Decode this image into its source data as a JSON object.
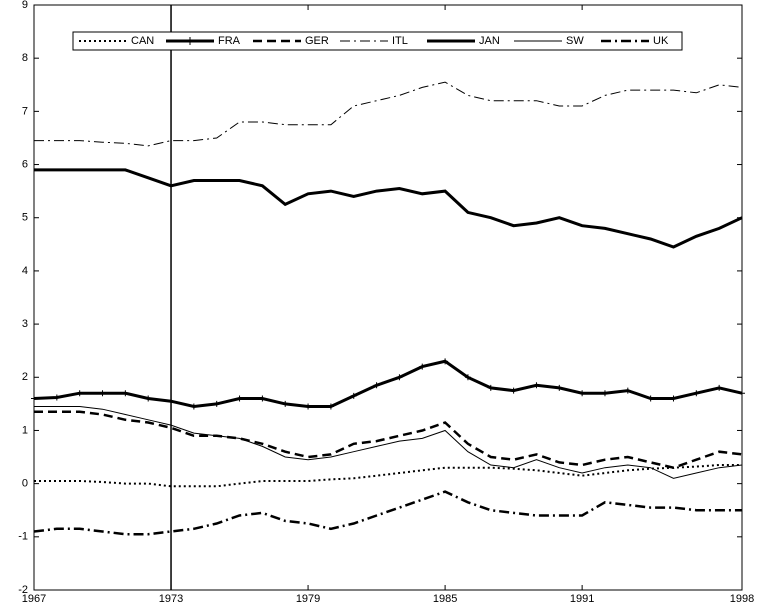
{
  "chart_data": {
    "type": "line",
    "x": [
      1967,
      1968,
      1969,
      1970,
      1971,
      1972,
      1973,
      1974,
      1975,
      1976,
      1977,
      1978,
      1979,
      1980,
      1981,
      1982,
      1983,
      1984,
      1985,
      1986,
      1987,
      1988,
      1989,
      1990,
      1991,
      1992,
      1993,
      1994,
      1995,
      1996,
      1997,
      1998
    ],
    "xlim": [
      1967,
      1998
    ],
    "xticks": [
      1967,
      1973,
      1979,
      1985,
      1991,
      1998
    ],
    "ylim": [
      -2,
      9
    ],
    "yticks": [
      -2,
      -1,
      0,
      1,
      2,
      3,
      4,
      5,
      6,
      7,
      8,
      9
    ],
    "vline": 1973,
    "legend": "top",
    "series": [
      {
        "name": "CAN",
        "color": "#000000",
        "linestyle": "dotted",
        "linewidth": 2,
        "values": [
          0.05,
          0.05,
          0.05,
          0.03,
          0.0,
          0.0,
          -0.05,
          -0.05,
          -0.05,
          0.0,
          0.05,
          0.05,
          0.05,
          0.08,
          0.1,
          0.15,
          0.2,
          0.25,
          0.3,
          0.3,
          0.3,
          0.28,
          0.25,
          0.2,
          0.15,
          0.2,
          0.25,
          0.28,
          0.3,
          0.32,
          0.35,
          0.35
        ]
      },
      {
        "name": "FRA",
        "color": "#000000",
        "linestyle": "solid",
        "linewidth": 3,
        "marker": "+",
        "values": [
          1.6,
          1.62,
          1.7,
          1.7,
          1.7,
          1.6,
          1.55,
          1.45,
          1.5,
          1.6,
          1.6,
          1.5,
          1.45,
          1.45,
          1.65,
          1.85,
          2.0,
          2.2,
          2.3,
          2.0,
          1.8,
          1.75,
          1.85,
          1.8,
          1.7,
          1.7,
          1.75,
          1.6,
          1.6,
          1.7,
          1.8,
          1.7
        ]
      },
      {
        "name": "GER",
        "color": "#000000",
        "linestyle": "dashed",
        "linewidth": 2.5,
        "values": [
          1.35,
          1.35,
          1.35,
          1.3,
          1.2,
          1.15,
          1.05,
          0.9,
          0.9,
          0.85,
          0.75,
          0.6,
          0.5,
          0.55,
          0.75,
          0.8,
          0.9,
          1.0,
          1.15,
          0.75,
          0.5,
          0.45,
          0.55,
          0.4,
          0.35,
          0.45,
          0.5,
          0.4,
          0.3,
          0.45,
          0.6,
          0.55
        ]
      },
      {
        "name": "ITL",
        "color": "#000000",
        "linestyle": "dashdot",
        "linewidth": 1,
        "values": [
          6.45,
          6.45,
          6.45,
          6.42,
          6.4,
          6.35,
          6.45,
          6.45,
          6.5,
          6.8,
          6.8,
          6.75,
          6.75,
          6.75,
          7.1,
          7.2,
          7.3,
          7.45,
          7.55,
          7.3,
          7.2,
          7.2,
          7.2,
          7.1,
          7.1,
          7.3,
          7.4,
          7.4,
          7.4,
          7.35,
          7.5,
          7.45
        ]
      },
      {
        "name": "JAN",
        "color": "#000000",
        "linestyle": "solid",
        "linewidth": 3,
        "values": [
          5.9,
          5.9,
          5.9,
          5.9,
          5.9,
          5.75,
          5.6,
          5.7,
          5.7,
          5.7,
          5.6,
          5.25,
          5.45,
          5.5,
          5.4,
          5.5,
          5.55,
          5.45,
          5.5,
          5.1,
          5.0,
          4.85,
          4.9,
          5.0,
          4.85,
          4.8,
          4.7,
          4.6,
          4.45,
          4.65,
          4.8,
          5.0
        ]
      },
      {
        "name": "SW",
        "color": "#000000",
        "linestyle": "solid",
        "linewidth": 1,
        "values": [
          1.45,
          1.45,
          1.45,
          1.4,
          1.3,
          1.2,
          1.1,
          0.95,
          0.9,
          0.85,
          0.7,
          0.5,
          0.45,
          0.5,
          0.6,
          0.7,
          0.8,
          0.85,
          1.0,
          0.6,
          0.35,
          0.3,
          0.45,
          0.3,
          0.2,
          0.3,
          0.35,
          0.3,
          0.1,
          0.2,
          0.3,
          0.35
        ]
      },
      {
        "name": "UK",
        "color": "#000000",
        "linestyle": "dashdot",
        "linewidth": 2.5,
        "values": [
          -0.9,
          -0.85,
          -0.85,
          -0.9,
          -0.95,
          -0.95,
          -0.9,
          -0.85,
          -0.75,
          -0.6,
          -0.55,
          -0.7,
          -0.75,
          -0.85,
          -0.75,
          -0.6,
          -0.45,
          -0.3,
          -0.15,
          -0.35,
          -0.5,
          -0.55,
          -0.6,
          -0.6,
          -0.6,
          -0.35,
          -0.4,
          -0.45,
          -0.45,
          -0.5,
          -0.5,
          -0.5
        ]
      }
    ]
  }
}
